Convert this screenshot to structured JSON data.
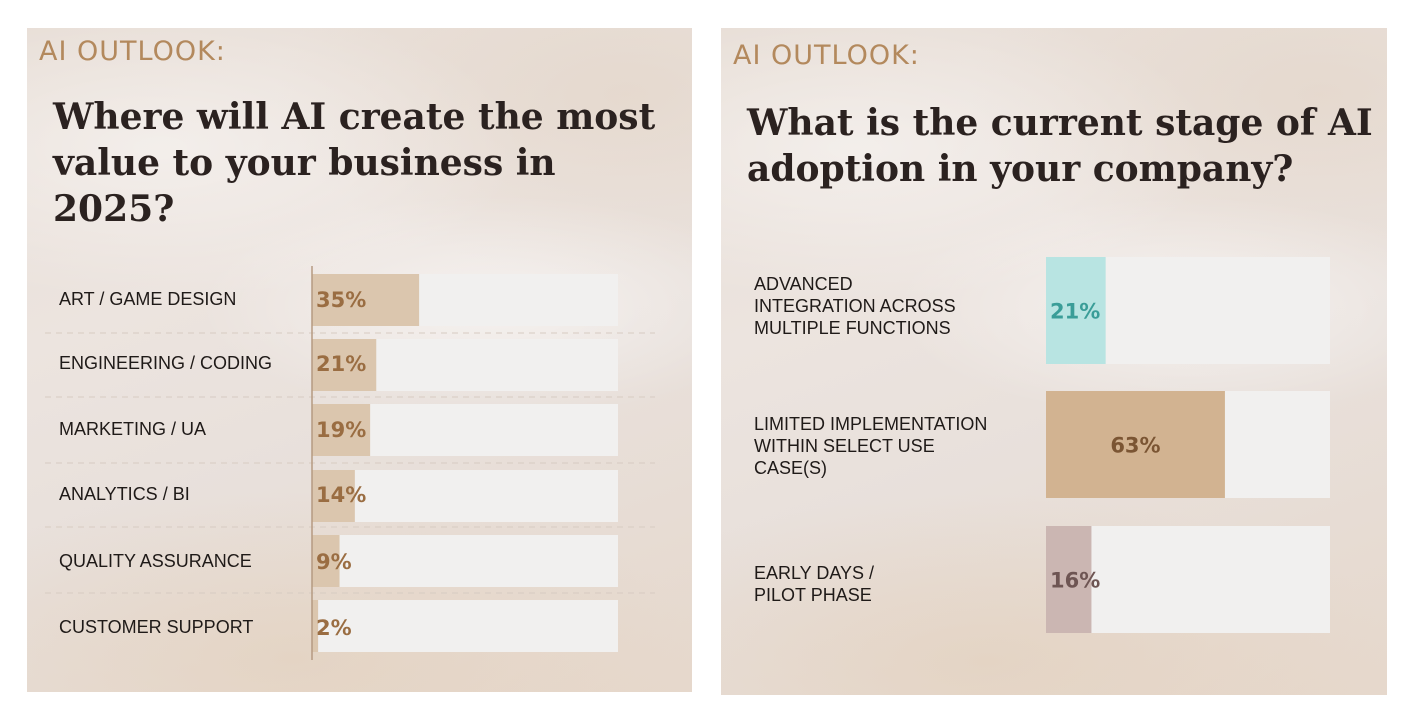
{
  "panels": [
    {
      "kicker": "AI OUTLOOK:",
      "question_lines": [
        "Where will AI create the most",
        "value to your business in 2025?"
      ]
    },
    {
      "kicker": "AI OUTLOOK:",
      "question_lines": [
        "What is the current stage of AI",
        "adoption in your company?"
      ]
    }
  ],
  "colors": {
    "kicker": "#b3895d",
    "track": "#f1f0ef",
    "bar_tan": "#dbc6ae",
    "bar_cyan": "#b8e4e2",
    "bar_brown": "#d2b391",
    "bar_mauve": "#cbb6b2",
    "text_brown": "#9a6d42",
    "text_teal": "#3a9d98",
    "text_dark_brown": "#7b5533",
    "text_mauve": "#6e5553"
  },
  "chart_data": [
    {
      "type": "bar",
      "orientation": "horizontal",
      "title": "Where will AI create the most value to your business in 2025?",
      "categories": [
        "ART / GAME DESIGN",
        "ENGINEERING / CODING",
        "MARKETING / UA",
        "ANALYTICS / BI",
        "QUALITY ASSURANCE",
        "CUSTOMER SUPPORT"
      ],
      "values": [
        35,
        21,
        19,
        14,
        9,
        2
      ],
      "value_labels": [
        "35%",
        "21%",
        "19%",
        "14%",
        "9%",
        "2%"
      ],
      "xlim": [
        0,
        100
      ],
      "unit": "%"
    },
    {
      "type": "bar",
      "orientation": "horizontal",
      "title": "What is the current stage of AI adoption in your company?",
      "categories": [
        [
          "ADVANCED",
          "INTEGRATION ACROSS",
          "MULTIPLE FUNCTIONS"
        ],
        [
          "LIMITED IMPLEMENTATION",
          "WITHIN SELECT USE",
          "CASE(S)"
        ],
        [
          "EARLY DAYS /",
          "PILOT PHASE"
        ]
      ],
      "values": [
        21,
        63,
        16
      ],
      "value_labels": [
        "21%",
        "63%",
        "16%"
      ],
      "xlim": [
        0,
        100
      ],
      "unit": "%"
    }
  ]
}
